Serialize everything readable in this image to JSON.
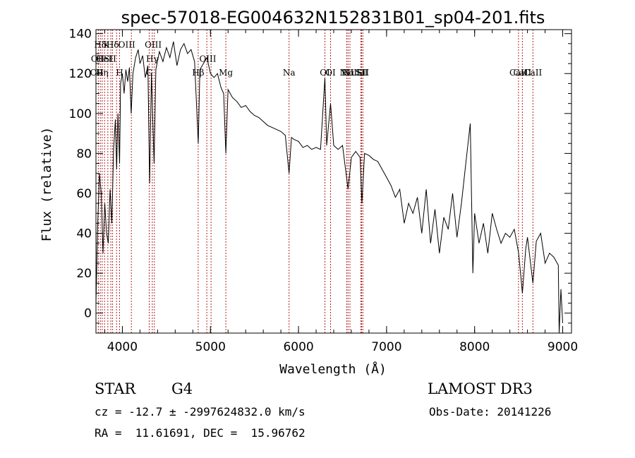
{
  "chart_data": {
    "type": "line",
    "title": "spec-57018-EG004632N152831B01_sp04-201.fits",
    "xlabel": "Wavelength (Å)",
    "ylabel": "Flux (relative)",
    "xlim": [
      3700,
      9100
    ],
    "ylim": [
      -10,
      142
    ],
    "xticks": [
      4000,
      5000,
      6000,
      7000,
      8000,
      9000
    ],
    "yticks": [
      0,
      20,
      40,
      60,
      80,
      100,
      120,
      140
    ],
    "grid": false,
    "line_color": "#000000",
    "marker_color": "#b22222",
    "spectrum": [
      [
        3700,
        5
      ],
      [
        3720,
        45
      ],
      [
        3740,
        70
      ],
      [
        3760,
        60
      ],
      [
        3780,
        30
      ],
      [
        3800,
        55
      ],
      [
        3820,
        40
      ],
      [
        3840,
        35
      ],
      [
        3860,
        62
      ],
      [
        3880,
        45
      ],
      [
        3900,
        82
      ],
      [
        3920,
        97
      ],
      [
        3935,
        72
      ],
      [
        3950,
        100
      ],
      [
        3968,
        75
      ],
      [
        3980,
        115
      ],
      [
        4000,
        120
      ],
      [
        4020,
        110
      ],
      [
        4040,
        122
      ],
      [
        4060,
        116
      ],
      [
        4080,
        123
      ],
      [
        4100,
        100
      ],
      [
        4120,
        120
      ],
      [
        4150,
        128
      ],
      [
        4180,
        132
      ],
      [
        4200,
        125
      ],
      [
        4230,
        129
      ],
      [
        4260,
        118
      ],
      [
        4290,
        124
      ],
      [
        4310,
        65
      ],
      [
        4330,
        120
      ],
      [
        4360,
        75
      ],
      [
        4380,
        122
      ],
      [
        4420,
        131
      ],
      [
        4460,
        126
      ],
      [
        4500,
        133
      ],
      [
        4540,
        128
      ],
      [
        4580,
        136
      ],
      [
        4620,
        124
      ],
      [
        4660,
        132
      ],
      [
        4700,
        135
      ],
      [
        4740,
        130
      ],
      [
        4780,
        132
      ],
      [
        4820,
        126
      ],
      [
        4862,
        85
      ],
      [
        4880,
        122
      ],
      [
        4920,
        125
      ],
      [
        4960,
        128
      ],
      [
        5000,
        120
      ],
      [
        5040,
        118
      ],
      [
        5080,
        120
      ],
      [
        5120,
        113
      ],
      [
        5150,
        110
      ],
      [
        5175,
        80
      ],
      [
        5200,
        112
      ],
      [
        5250,
        108
      ],
      [
        5300,
        106
      ],
      [
        5350,
        103
      ],
      [
        5400,
        104
      ],
      [
        5450,
        101
      ],
      [
        5500,
        99
      ],
      [
        5550,
        98
      ],
      [
        5600,
        96
      ],
      [
        5650,
        94
      ],
      [
        5700,
        93
      ],
      [
        5750,
        92
      ],
      [
        5800,
        91
      ],
      [
        5850,
        89
      ],
      [
        5893,
        70
      ],
      [
        5920,
        88
      ],
      [
        5950,
        87
      ],
      [
        6000,
        86
      ],
      [
        6050,
        83
      ],
      [
        6100,
        84
      ],
      [
        6150,
        82
      ],
      [
        6200,
        83
      ],
      [
        6250,
        82
      ],
      [
        6300,
        118
      ],
      [
        6320,
        84
      ],
      [
        6364,
        105
      ],
      [
        6400,
        84
      ],
      [
        6450,
        82
      ],
      [
        6500,
        84
      ],
      [
        6563,
        62
      ],
      [
        6600,
        78
      ],
      [
        6650,
        81
      ],
      [
        6700,
        78
      ],
      [
        6720,
        55
      ],
      [
        6750,
        80
      ],
      [
        6800,
        79
      ],
      [
        6850,
        77
      ],
      [
        6900,
        76
      ],
      [
        6950,
        72
      ],
      [
        7000,
        68
      ],
      [
        7050,
        64
      ],
      [
        7100,
        58
      ],
      [
        7150,
        62
      ],
      [
        7200,
        45
      ],
      [
        7250,
        55
      ],
      [
        7300,
        50
      ],
      [
        7350,
        58
      ],
      [
        7400,
        40
      ],
      [
        7450,
        62
      ],
      [
        7500,
        35
      ],
      [
        7550,
        52
      ],
      [
        7600,
        30
      ],
      [
        7650,
        48
      ],
      [
        7700,
        42
      ],
      [
        7750,
        60
      ],
      [
        7800,
        38
      ],
      [
        7850,
        55
      ],
      [
        7900,
        75
      ],
      [
        7950,
        95
      ],
      [
        7980,
        20
      ],
      [
        8000,
        50
      ],
      [
        8050,
        35
      ],
      [
        8100,
        45
      ],
      [
        8150,
        30
      ],
      [
        8200,
        50
      ],
      [
        8250,
        42
      ],
      [
        8300,
        35
      ],
      [
        8350,
        40
      ],
      [
        8400,
        38
      ],
      [
        8450,
        42
      ],
      [
        8500,
        30
      ],
      [
        8542,
        10
      ],
      [
        8580,
        32
      ],
      [
        8600,
        38
      ],
      [
        8662,
        15
      ],
      [
        8700,
        36
      ],
      [
        8750,
        40
      ],
      [
        8800,
        25
      ],
      [
        8850,
        30
      ],
      [
        8900,
        28
      ],
      [
        8950,
        24
      ],
      [
        8960,
        -10
      ],
      [
        8980,
        12
      ],
      [
        9000,
        -5
      ]
    ],
    "line_markers": [
      {
        "label": "Hδ",
        "x": 3750,
        "y": 133
      },
      {
        "label": "K",
        "x": 3820,
        "y": 133
      },
      {
        "label": "Hδ",
        "x": 3890,
        "y": 133
      },
      {
        "label": "OIII",
        "x": 4050,
        "y": 133
      },
      {
        "label": "OIII",
        "x": 4350,
        "y": 133
      },
      {
        "label": "OII",
        "x": 3720,
        "y": 126
      },
      {
        "label": "HeI",
        "x": 3790,
        "y": 126
      },
      {
        "label": "SII",
        "x": 3860,
        "y": 126
      },
      {
        "label": "Hγ",
        "x": 4340,
        "y": 126
      },
      {
        "label": "OIII",
        "x": 4970,
        "y": 126
      },
      {
        "label": "OII",
        "x": 3710,
        "y": 119
      },
      {
        "label": "Hη",
        "x": 3770,
        "y": 119
      },
      {
        "label": "H",
        "x": 3968,
        "y": 119
      },
      {
        "label": "G",
        "x": 4305,
        "y": 119
      },
      {
        "label": "Hβ",
        "x": 4861,
        "y": 119
      },
      {
        "label": "Mg",
        "x": 5175,
        "y": 119
      },
      {
        "label": "Na",
        "x": 5893,
        "y": 119
      },
      {
        "label": "OI",
        "x": 6300,
        "y": 119
      },
      {
        "label": "Hα",
        "x": 6563,
        "y": 119
      },
      {
        "label": "SII",
        "x": 6717,
        "y": 119
      },
      {
        "label": "CaII",
        "x": 8498,
        "y": 119
      },
      {
        "label": "NII",
        "x": 6548,
        "y": 119
      },
      {
        "label": "Li",
        "x": 6708,
        "y": 119
      },
      {
        "label": "OI",
        "x": 6364,
        "y": 119
      },
      {
        "label": "NII",
        "x": 6584,
        "y": 119
      },
      {
        "label": "SII",
        "x": 6731,
        "y": 119
      },
      {
        "label": "CaII",
        "x": 8542,
        "y": 119
      },
      {
        "label": "CaII",
        "x": 8662,
        "y": 119
      }
    ],
    "marker_lines": [
      3727,
      3750,
      3771,
      3798,
      3835,
      3869,
      3889,
      3934,
      3968,
      4102,
      4305,
      4340,
      4363,
      4861,
      4959,
      5007,
      5175,
      5893,
      6300,
      6364,
      6548,
      6563,
      6584,
      6708,
      6717,
      6731,
      8498,
      8542,
      8662
    ]
  },
  "info": {
    "object_type": "STAR",
    "subclass": "G4",
    "survey": "LAMOST DR3",
    "cz_line": "cz = -12.7 ± -2997624832.0 km/s",
    "obs_date_line": "Obs-Date: 20141226",
    "coords_line": "RA =  11.61691, DEC =  15.96762"
  }
}
